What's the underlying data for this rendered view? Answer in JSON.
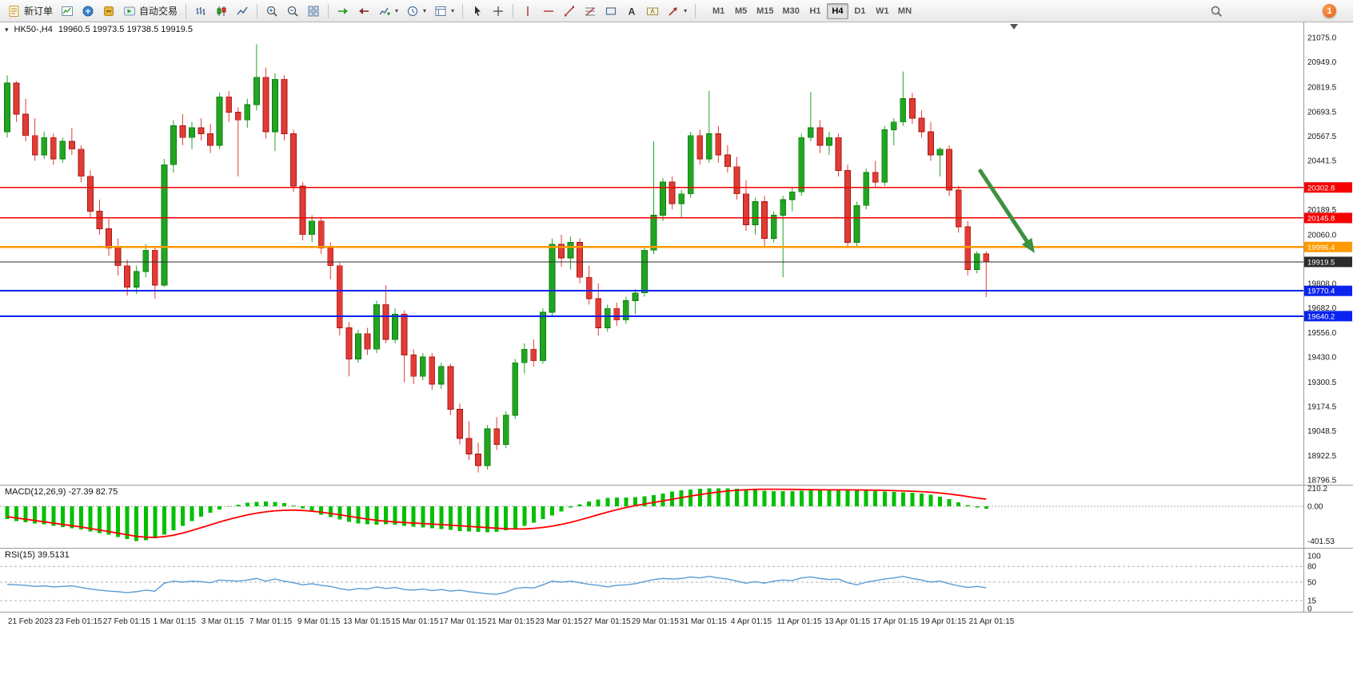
{
  "window": {
    "badge_count": "1"
  },
  "toolbar": {
    "new_order_label": "新订单",
    "autotrading_label": "自动交易",
    "timeframes": {
      "items": [
        "M1",
        "M5",
        "M15",
        "M30",
        "H1",
        "H4",
        "D1",
        "W1",
        "MN"
      ],
      "active": "H4"
    }
  },
  "chart": {
    "symbol_period": "HK50-,H4",
    "ohlc": "19960.5 19973.5 19738.5 19919.5"
  },
  "indicators": {
    "macd_label": "MACD(12,26,9) -27.39 82.75",
    "rsi_label": "RSI(15) 39.5131"
  },
  "chart_data": {
    "type": "candlestick",
    "symbol": "HK50-",
    "timeframe": "H4",
    "colors": {
      "up": "#22a522",
      "up_border": "#0d7a0d",
      "down": "#e23b35",
      "down_border": "#a31815",
      "macd_hist": "#00c000",
      "macd_signal": "#ff0000",
      "rsi_line": "#5b9bd5",
      "arrow": "#3d9140"
    },
    "candles": [
      [
        20590,
        20880,
        20560,
        20840
      ],
      [
        20840,
        20850,
        20640,
        20680
      ],
      [
        20680,
        20760,
        20540,
        20570
      ],
      [
        20570,
        20660,
        20440,
        20470
      ],
      [
        20470,
        20590,
        20450,
        20560
      ],
      [
        20560,
        20580,
        20420,
        20450
      ],
      [
        20450,
        20560,
        20430,
        20540
      ],
      [
        20540,
        20610,
        20470,
        20500
      ],
      [
        20500,
        20520,
        20330,
        20360
      ],
      [
        20360,
        20390,
        20150,
        20180
      ],
      [
        20180,
        20240,
        20060,
        20090
      ],
      [
        20090,
        20140,
        19950,
        19990
      ],
      [
        19990,
        20040,
        19850,
        19900
      ],
      [
        19900,
        19930,
        19745,
        19790
      ],
      [
        19790,
        19900,
        19755,
        19870
      ],
      [
        19870,
        20010,
        19840,
        19980
      ],
      [
        19980,
        19995,
        19730,
        19800
      ],
      [
        19800,
        20450,
        19790,
        20420
      ],
      [
        20420,
        20650,
        20380,
        20620
      ],
      [
        20620,
        20680,
        20520,
        20560
      ],
      [
        20560,
        20640,
        20500,
        20610
      ],
      [
        20610,
        20660,
        20545,
        20580
      ],
      [
        20580,
        20630,
        20480,
        20520
      ],
      [
        20520,
        20790,
        20500,
        20770
      ],
      [
        20770,
        20800,
        20640,
        20690
      ],
      [
        20690,
        20715,
        20360,
        20650
      ],
      [
        20650,
        20760,
        20610,
        20730
      ],
      [
        20730,
        21040,
        20700,
        20870
      ],
      [
        20870,
        20920,
        20555,
        20590
      ],
      [
        20590,
        20890,
        20490,
        20860
      ],
      [
        20860,
        20880,
        20545,
        20580
      ],
      [
        20580,
        20600,
        20280,
        20310
      ],
      [
        20310,
        20330,
        20030,
        20060
      ],
      [
        20060,
        20160,
        20020,
        20130
      ],
      [
        20130,
        20150,
        19960,
        19990
      ],
      [
        19990,
        20020,
        19830,
        19900
      ],
      [
        19900,
        19915,
        19540,
        19580
      ],
      [
        19580,
        19610,
        19330,
        19420
      ],
      [
        19420,
        19570,
        19400,
        19550
      ],
      [
        19550,
        19580,
        19440,
        19470
      ],
      [
        19470,
        19720,
        19450,
        19700
      ],
      [
        19700,
        19800,
        19500,
        19520
      ],
      [
        19520,
        19680,
        19500,
        19650
      ],
      [
        19650,
        19670,
        19300,
        19440
      ],
      [
        19440,
        19470,
        19290,
        19330
      ],
      [
        19330,
        19450,
        19310,
        19430
      ],
      [
        19430,
        19450,
        19260,
        19290
      ],
      [
        19290,
        19400,
        19265,
        19380
      ],
      [
        19380,
        19395,
        19130,
        19160
      ],
      [
        19160,
        19190,
        18980,
        19010
      ],
      [
        19010,
        19100,
        18900,
        18930
      ],
      [
        18930,
        18990,
        18835,
        18870
      ],
      [
        18870,
        19080,
        18850,
        19060
      ],
      [
        19060,
        19120,
        18950,
        18980
      ],
      [
        18980,
        19150,
        18960,
        19130
      ],
      [
        19130,
        19420,
        19110,
        19400
      ],
      [
        19400,
        19500,
        19345,
        19470
      ],
      [
        19470,
        19520,
        19380,
        19410
      ],
      [
        19410,
        19680,
        19395,
        19660
      ],
      [
        19660,
        20040,
        19640,
        20010
      ],
      [
        20010,
        20060,
        19895,
        19940
      ],
      [
        19940,
        20050,
        19880,
        20020
      ],
      [
        20020,
        20040,
        19810,
        19840
      ],
      [
        19840,
        19900,
        19700,
        19730
      ],
      [
        19730,
        19810,
        19540,
        19580
      ],
      [
        19580,
        19700,
        19560,
        19680
      ],
      [
        19680,
        19710,
        19590,
        19620
      ],
      [
        19620,
        19740,
        19600,
        19720
      ],
      [
        19720,
        19780,
        19650,
        19760
      ],
      [
        19760,
        20000,
        19740,
        19980
      ],
      [
        19980,
        20540,
        19960,
        20160
      ],
      [
        20160,
        20350,
        20130,
        20330
      ],
      [
        20330,
        20360,
        20190,
        20220
      ],
      [
        20220,
        20290,
        20150,
        20270
      ],
      [
        20270,
        20590,
        20250,
        20570
      ],
      [
        20570,
        20600,
        20420,
        20450
      ],
      [
        20450,
        20800,
        20430,
        20580
      ],
      [
        20580,
        20620,
        20430,
        20470
      ],
      [
        20470,
        20520,
        20380,
        20410
      ],
      [
        20410,
        20460,
        20240,
        20270
      ],
      [
        20270,
        20340,
        20080,
        20110
      ],
      [
        20110,
        20250,
        20060,
        20230
      ],
      [
        20230,
        20260,
        19995,
        20040
      ],
      [
        20040,
        20180,
        20020,
        20160
      ],
      [
        20160,
        20260,
        19840,
        20240
      ],
      [
        20240,
        20300,
        20180,
        20280
      ],
      [
        20280,
        20580,
        20260,
        20560
      ],
      [
        20560,
        20795,
        20540,
        20610
      ],
      [
        20610,
        20650,
        20480,
        20520
      ],
      [
        20520,
        20590,
        20470,
        20560
      ],
      [
        20560,
        20580,
        20360,
        20390
      ],
      [
        20390,
        20420,
        19990,
        20020
      ],
      [
        20020,
        20230,
        20000,
        20210
      ],
      [
        20210,
        20400,
        20190,
        20380
      ],
      [
        20380,
        20440,
        20300,
        20330
      ],
      [
        20330,
        20620,
        20310,
        20600
      ],
      [
        20600,
        20660,
        20520,
        20640
      ],
      [
        20640,
        20900,
        20620,
        20760
      ],
      [
        20760,
        20790,
        20630,
        20660
      ],
      [
        20660,
        20700,
        20560,
        20590
      ],
      [
        20590,
        20640,
        20440,
        20470
      ],
      [
        20470,
        20510,
        20360,
        20500
      ],
      [
        20500,
        20520,
        20260,
        20290
      ],
      [
        20290,
        20310,
        20070,
        20100
      ],
      [
        20100,
        20130,
        19850,
        19880
      ],
      [
        19880,
        19975,
        19860,
        19960
      ],
      [
        19960.5,
        19973.5,
        19738.5,
        19919.5
      ]
    ],
    "levels": [
      {
        "value": 20302.8,
        "label": "20302.8",
        "color": "#f40000",
        "width": 1.4,
        "interactable": true
      },
      {
        "value": 20145.8,
        "label": "20145.8",
        "color": "#f40000",
        "width": 1.4,
        "interactable": true
      },
      {
        "value": 19996.4,
        "label": "19996.4",
        "color": "#ff9900",
        "width": 2.4,
        "interactable": true
      },
      {
        "value": 19919.5,
        "label": "19919.5",
        "color": "#2b2b2b",
        "width": 1.0,
        "interactable": false
      },
      {
        "value": 19770.4,
        "label": "19770.4",
        "color": "#0a23f0",
        "width": 2.0,
        "interactable": true
      },
      {
        "value": 19640.2,
        "label": "19640.2",
        "color": "#0a23f0",
        "width": 2.0,
        "interactable": true
      }
    ],
    "price_ticks": [
      "21075.0",
      "20949.0",
      "20819.5",
      "20693.5",
      "20567.5",
      "20441.5",
      "20189.5",
      "20060.0",
      "19808.0",
      "19682.0",
      "19556.0",
      "19430.0",
      "19300.5",
      "19174.5",
      "19048.5",
      "18922.5",
      "18796.5"
    ],
    "time_labels": [
      "21 Feb 2023",
      "23 Feb 01:15",
      "27 Feb 01:15",
      "1 Mar 01:15",
      "3 Mar 01:15",
      "7 Mar 01:15",
      "9 Mar 01:15",
      "13 Mar 01:15",
      "15 Mar 01:15",
      "17 Mar 01:15",
      "21 Mar 01:15",
      "23 Mar 01:15",
      "27 Mar 01:15",
      "29 Mar 01:15",
      "31 Mar 01:15",
      "4 Apr 01:15",
      "11 Apr 01:15",
      "13 Apr 01:15",
      "17 Apr 01:15",
      "19 Apr 01:15",
      "21 Apr 01:15"
    ],
    "macd": {
      "params": "12,26,9",
      "main_value": -27.39,
      "signal_value": 82.75,
      "axis": [
        "210.2",
        "0.00",
        "-401.53"
      ],
      "histogram": [
        -150,
        -170,
        -185,
        -200,
        -210,
        -225,
        -240,
        -255,
        -270,
        -290,
        -310,
        -330,
        -355,
        -380,
        -401.53,
        -395,
        -370,
        -330,
        -280,
        -225,
        -170,
        -120,
        -75,
        -35,
        -5,
        20,
        40,
        50,
        55,
        50,
        35,
        10,
        -25,
        -60,
        -95,
        -125,
        -155,
        -180,
        -200,
        -210,
        -215,
        -210,
        -215,
        -225,
        -235,
        -245,
        -255,
        -265,
        -275,
        -285,
        -290,
        -295,
        -300,
        -295,
        -280,
        -255,
        -225,
        -190,
        -150,
        -105,
        -60,
        -15,
        25,
        55,
        80,
        95,
        100,
        100,
        105,
        115,
        130,
        150,
        170,
        185,
        195,
        205,
        210.2,
        210,
        208,
        202,
        195,
        188,
        182,
        178,
        176,
        178,
        182,
        186,
        190,
        192,
        193,
        192,
        188,
        183,
        178,
        172,
        168,
        164,
        158,
        148,
        132,
        110,
        82,
        48,
        12,
        -12,
        -27.39
      ],
      "signal": [
        -120,
        -135,
        -150,
        -165,
        -180,
        -195,
        -210,
        -225,
        -240,
        -258,
        -275,
        -293,
        -312,
        -330,
        -348,
        -358,
        -360,
        -352,
        -335,
        -310,
        -280,
        -248,
        -215,
        -182,
        -152,
        -125,
        -100,
        -80,
        -64,
        -52,
        -46,
        -44,
        -48,
        -56,
        -68,
        -82,
        -98,
        -115,
        -132,
        -148,
        -162,
        -173,
        -181,
        -188,
        -194,
        -200,
        -206,
        -212,
        -219,
        -226,
        -233,
        -240,
        -247,
        -254,
        -260,
        -263,
        -262,
        -256,
        -245,
        -230,
        -210,
        -186,
        -158,
        -128,
        -97,
        -67,
        -39,
        -14,
        8,
        27,
        45,
        63,
        82,
        101,
        119,
        136,
        152,
        166,
        177,
        186,
        192,
        196,
        198,
        198,
        197,
        196,
        194,
        193,
        192,
        191,
        191,
        191,
        190,
        189,
        187,
        185,
        182,
        179,
        175,
        170,
        163,
        154,
        143,
        129,
        113,
        96,
        82.75
      ]
    },
    "rsi": {
      "period": 15,
      "value": 39.5131,
      "axis": [
        "100",
        "80",
        "50",
        "15",
        "0"
      ],
      "level_lines": [
        80,
        50,
        15
      ],
      "values": [
        46,
        45,
        44,
        42,
        43,
        41,
        42,
        43,
        40,
        37,
        35,
        33,
        32,
        30,
        32,
        35,
        33,
        48,
        52,
        50,
        52,
        51,
        49,
        54,
        53,
        52,
        54,
        57,
        52,
        56,
        52,
        49,
        45,
        47,
        44,
        42,
        38,
        35,
        38,
        37,
        41,
        38,
        40,
        36,
        35,
        37,
        34,
        36,
        33,
        35,
        32,
        30,
        28,
        27,
        31,
        38,
        40,
        39,
        45,
        52,
        50,
        52,
        49,
        46,
        44,
        41,
        44,
        45,
        47,
        51,
        55,
        57,
        56,
        57,
        60,
        58,
        61,
        58,
        56,
        52,
        48,
        51,
        48,
        52,
        54,
        53,
        58,
        60,
        57,
        55,
        56,
        49,
        45,
        50,
        53,
        56,
        58,
        61,
        57,
        54,
        50,
        52,
        47,
        43,
        40,
        42,
        39.51
      ]
    },
    "annotation_arrow": {
      "from": [
        1226,
        214
      ],
      "to": [
        1294,
        317
      ]
    }
  }
}
